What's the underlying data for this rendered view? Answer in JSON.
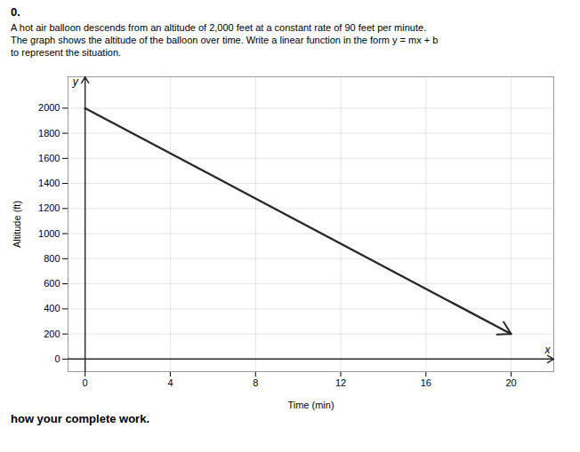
{
  "chart_data": {
    "type": "line",
    "title": "0.",
    "subtitle": [
      "A hot air balloon descends from an altitude of 2,000 feet at a constant rate of 90 feet per minute.",
      "The graph shows the altitude of the balloon over time. Write a linear function in the form y = mx + b",
      "to represent the situation."
    ],
    "caption": "how your complete work.",
    "x_label": "Time (min)",
    "y_label": "Altitude (ft)",
    "annotations": [
      "x",
      "y"
    ],
    "x": [
      0,
      20
    ],
    "values": [
      2000,
      200
    ],
    "color": "#2b2b2b",
    "marker": "arrow",
    "xlim": [
      -0.8,
      22.0
    ],
    "ylim": [
      -100,
      2250
    ],
    "xticks": [
      0,
      4,
      8,
      12,
      16,
      20
    ],
    "yticks": [
      0,
      200,
      400,
      600,
      800,
      1000,
      1200,
      1400,
      1600,
      1800,
      2000
    ],
    "grid": true
  }
}
